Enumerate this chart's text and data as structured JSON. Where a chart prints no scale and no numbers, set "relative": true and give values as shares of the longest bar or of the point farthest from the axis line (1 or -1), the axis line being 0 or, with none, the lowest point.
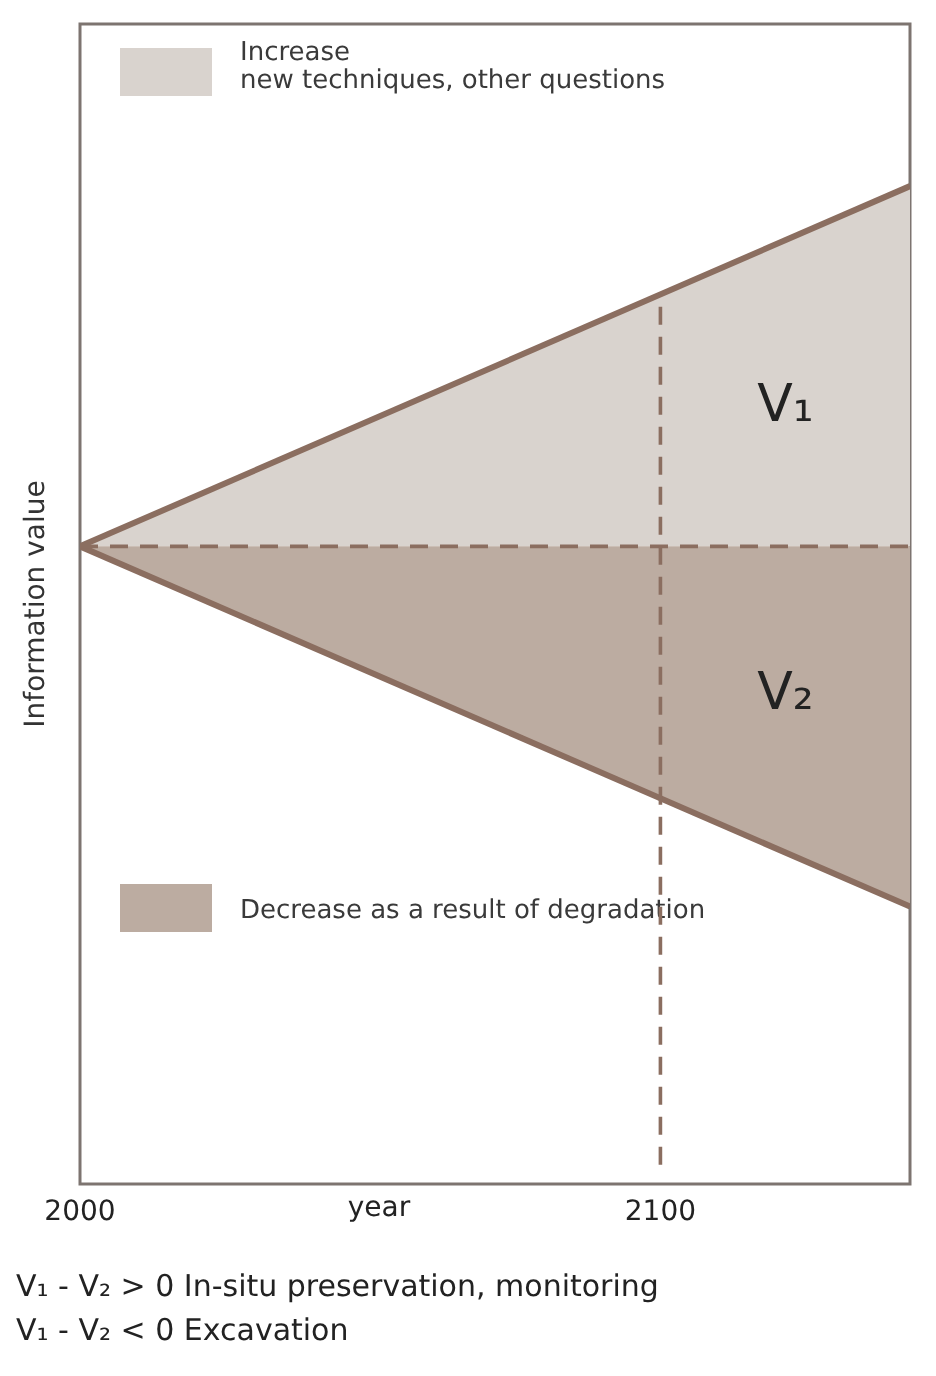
{
  "chart_data": {
    "type": "area",
    "relative": true,
    "xlabel": "year",
    "ylabel": "Information value",
    "x": [
      2000,
      2143
    ],
    "xlim": [
      2000,
      2143
    ],
    "xticks": [
      2000,
      2100
    ],
    "series": [
      {
        "name": "Increase\nnew techniques, other questions",
        "color": "#d9d3ce",
        "values": [
          0,
          1
        ]
      },
      {
        "name": "Decrease as a result of degradation",
        "color": "#bcaca1",
        "values": [
          0,
          -1
        ]
      }
    ],
    "ref_lines": [
      {
        "axis": "y",
        "value": 0,
        "color": "#8b6e60",
        "line_style": "dashed"
      },
      {
        "axis": "x",
        "value": 2100,
        "color": "#8b6e60",
        "line_style": "dashed"
      }
    ],
    "annotations": [
      "V₁",
      "V₂",
      "V₁ - V₂ > 0 In-situ preservation, monitoring",
      "V₁ - V₂ < 0 Excavation"
    ],
    "legend": "top left"
  }
}
